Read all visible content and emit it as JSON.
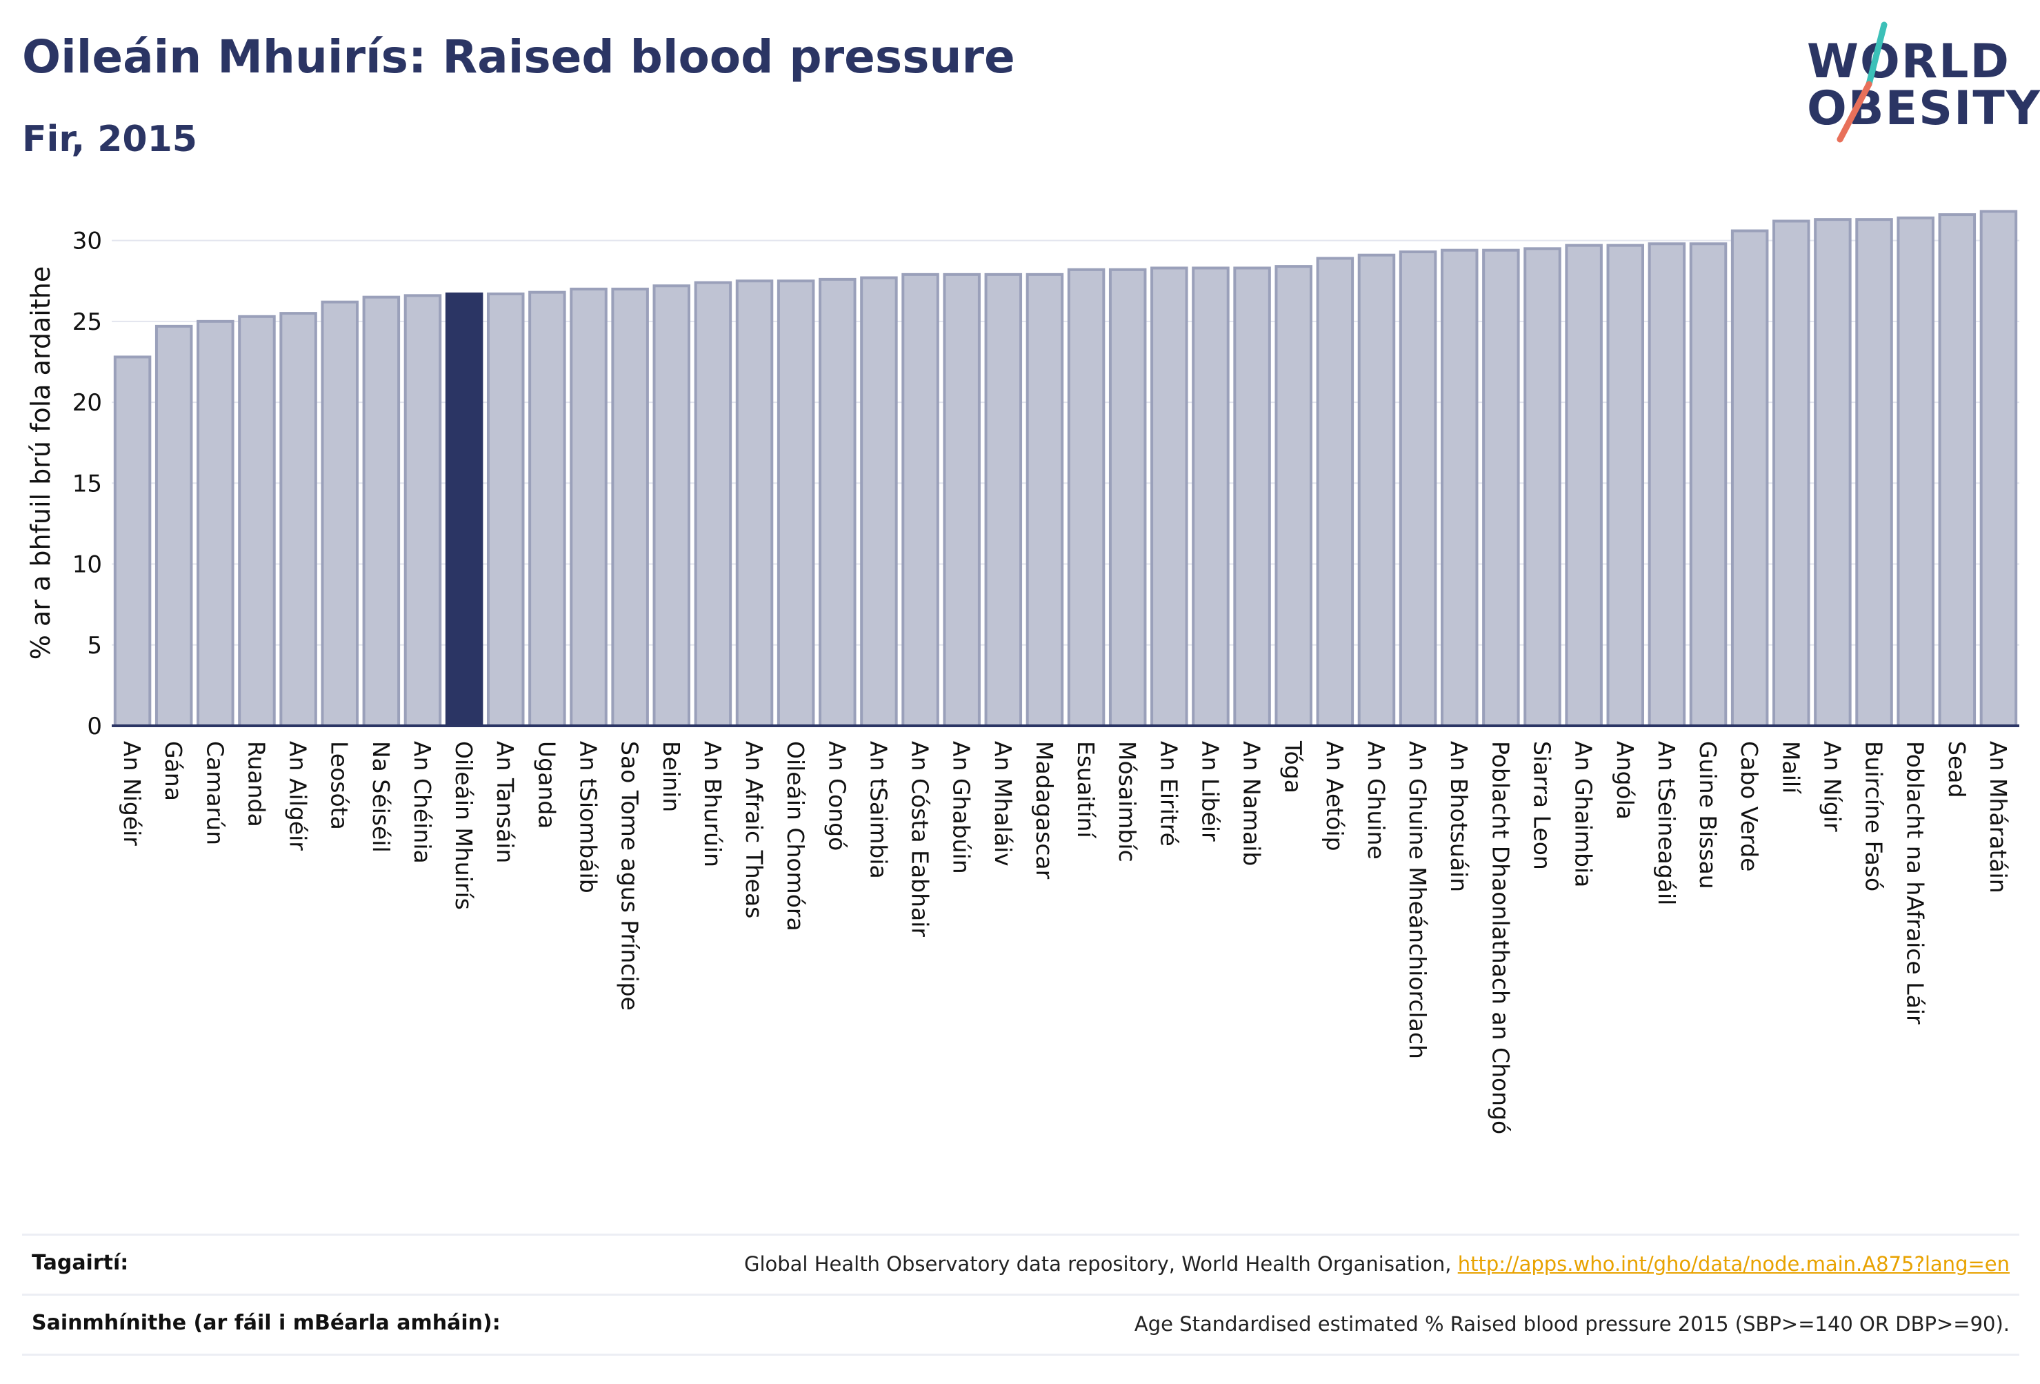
{
  "header": {
    "title": "Oileáin Mhuirís: Raised blood pressure",
    "subtitle": "Fir, 2015"
  },
  "logo": {
    "line1": "WORLD",
    "line2": "OBESITY",
    "slash_colors": [
      "#3cc0b8",
      "#e8705a"
    ]
  },
  "colors": {
    "bar": "#bfc3d3",
    "bar_stroke": "#9aa0ba",
    "highlight": "#2b3564",
    "axis": "#2b3564",
    "grid": "#e3e5ee"
  },
  "chart_data": {
    "type": "bar",
    "title": "",
    "ylabel": "% ar a bhfuil brú fola ardaithe",
    "xlabel": "",
    "ylim": [
      0,
      32.5
    ],
    "yticks": [
      0,
      5,
      10,
      15,
      20,
      25,
      30
    ],
    "grid": true,
    "highlight": "Oileáin Mhuirís",
    "categories": [
      "An Nigéir",
      "Gána",
      "Camarún",
      "Ruanda",
      "An Ailgéir",
      "Leosóta",
      "Na Séiséil",
      "An Chéinia",
      "Oileáin Mhuirís",
      "An Tansáin",
      "Uganda",
      "An tSiombáib",
      "Sao Tome agus Príncipe",
      "Beinin",
      "An Bhurúin",
      "An Afraic Theas",
      "Oileáin Chomóra",
      "An Congó",
      "An tSaimbia",
      "An Cósta Eabhair",
      "An Ghabúin",
      "An Mhaláiv",
      "Madagascar",
      "Esuaitíní",
      "Mósaimbíc",
      "An Eiritré",
      "An Libéir",
      "An Namaib",
      "Tóga",
      "An Aetóip",
      "An Ghuine",
      "An Ghuine Mheánchiorclach",
      "An Bhotsuáin",
      "Poblacht Dhaonlathach an Chongó",
      "Siarra Leon",
      "An Ghaimbia",
      "Angóla",
      "An tSeineagáil",
      "Guine Bissau",
      "Cabo Verde",
      "Mailí",
      "An Nígir",
      "Buircíne Fasó",
      "Poblacht na hAfraice Láir",
      "Sead",
      "An Mháratáin"
    ],
    "values": [
      22.8,
      24.7,
      25.0,
      25.3,
      25.5,
      26.2,
      26.5,
      26.6,
      26.7,
      26.7,
      26.8,
      27.0,
      27.0,
      27.2,
      27.4,
      27.5,
      27.5,
      27.6,
      27.7,
      27.9,
      27.9,
      27.9,
      27.9,
      28.2,
      28.2,
      28.3,
      28.3,
      28.3,
      28.4,
      28.9,
      29.1,
      29.3,
      29.4,
      29.4,
      29.5,
      29.7,
      29.7,
      29.8,
      29.8,
      30.6,
      31.2,
      31.3,
      31.3,
      31.4,
      31.6,
      31.8
    ]
  },
  "footer": {
    "references_label": "Tagairtí:",
    "references_text": "Global Health Observatory data repository, World Health Organisation, ",
    "references_link": "http://apps.who.int/gho/data/node.main.A875?lang=en",
    "definitions_label": "Sainmhínithe (ar fáil i mBéarla amháin):",
    "definitions_text": "Age Standardised estimated % Raised blood pressure 2015 (SBP>=140 OR DBP>=90)."
  }
}
